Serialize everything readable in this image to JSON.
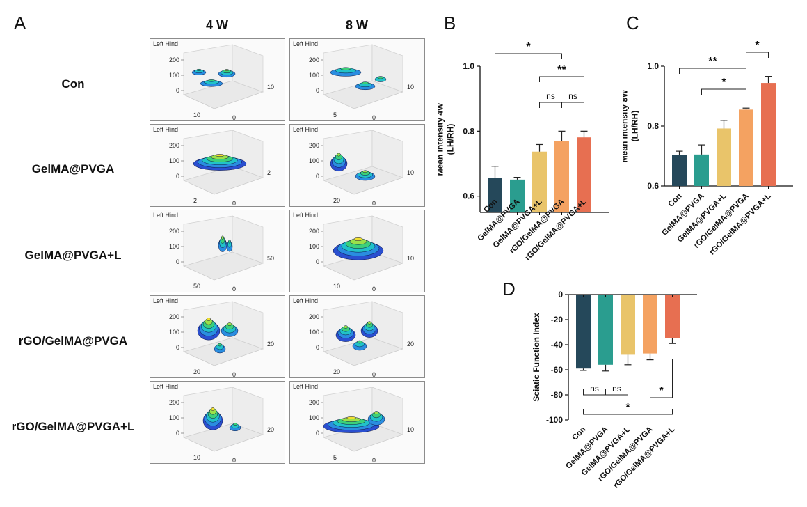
{
  "panel_labels": {
    "a": "A",
    "b": "B",
    "c": "C",
    "d": "D"
  },
  "panel_a": {
    "columns": [
      "4 W",
      "8 W"
    ],
    "groups": [
      "Con",
      "GelMA@PVGA",
      "GelMA@PVGA+L",
      "rGO/GelMA@PVGA",
      "rGO/GelMA@PVGA+L"
    ],
    "plot_title": "Left Hind",
    "plots": [
      [
        {
          "ticks": [
            "200",
            "100",
            "0"
          ],
          "axis_left": "10",
          "axis_right": "10",
          "axis_bottom": "0"
        },
        {
          "ticks": [
            "200",
            "100",
            "0"
          ],
          "axis_left": "5",
          "axis_right": "10",
          "axis_bottom": "0"
        }
      ],
      [
        {
          "ticks": [
            "200",
            "100",
            "0"
          ],
          "axis_left": "2",
          "axis_right": "2",
          "axis_bottom": "0"
        },
        {
          "ticks": [
            "200",
            "100",
            "0"
          ],
          "axis_left": "20",
          "axis_right": "10",
          "axis_bottom": "0"
        }
      ],
      [
        {
          "ticks": [
            "200",
            "100",
            "0"
          ],
          "axis_left": "50",
          "axis_right": "50",
          "axis_bottom": "0"
        },
        {
          "ticks": [
            "200",
            "100",
            "0"
          ],
          "axis_left": "10",
          "axis_right": "10",
          "axis_bottom": "0"
        }
      ],
      [
        {
          "ticks": [
            "200",
            "100",
            "0"
          ],
          "axis_left": "20",
          "axis_right": "20",
          "axis_bottom": "0"
        },
        {
          "ticks": [
            "200",
            "100",
            "0"
          ],
          "axis_left": "20",
          "axis_right": "20",
          "axis_bottom": "0"
        }
      ],
      [
        {
          "ticks": [
            "200",
            "100",
            "0"
          ],
          "axis_left": "10",
          "axis_right": "20",
          "axis_bottom": "0"
        },
        {
          "ticks": [
            "200",
            "100",
            "0"
          ],
          "axis_left": "5",
          "axis_right": "10",
          "axis_bottom": "0"
        }
      ]
    ]
  },
  "chart_data": [
    {
      "id": "B",
      "type": "bar",
      "categories": [
        "Con",
        "GelMA@PVGA",
        "GelMA@PVGA+L",
        "rGO/GelMA@PVGA",
        "rGO/GelMA@PVGA+L"
      ],
      "values": [
        0.656,
        0.651,
        0.737,
        0.77,
        0.781
      ],
      "errors": [
        0.036,
        0.007,
        0.022,
        0.03,
        0.019
      ],
      "colors": [
        "#25485a",
        "#2a9d8f",
        "#e9c46a",
        "#f4a261",
        "#e76f51"
      ],
      "ylabel": "Mean Intensity 4W\n(LH/RH)",
      "ylim": [
        0.55,
        1.0
      ],
      "yticks": [
        0.6,
        0.8,
        1.0
      ],
      "ytick_labels": [
        "0.6",
        "0.8",
        "1.0"
      ],
      "significance": [
        {
          "from": 0,
          "to": 3,
          "label": "*"
        },
        {
          "from": 2,
          "to": 4,
          "label": "**"
        },
        {
          "from": 2,
          "to": 3,
          "label": "ns"
        },
        {
          "from": 3,
          "to": 4,
          "label": "ns"
        }
      ]
    },
    {
      "id": "C",
      "type": "bar",
      "categories": [
        "Con",
        "GelMA@PVGA",
        "GelMA@PVGA+L",
        "rGO/GelMA@PVGA",
        "rGO/GelMA@PVGA+L"
      ],
      "values": [
        0.703,
        0.705,
        0.792,
        0.855,
        0.944
      ],
      "errors": [
        0.013,
        0.032,
        0.027,
        0.005,
        0.022
      ],
      "colors": [
        "#25485a",
        "#2a9d8f",
        "#e9c46a",
        "#f4a261",
        "#e76f51"
      ],
      "ylabel": "Mean Intensity 8W\n(LH/RH)",
      "ylim": [
        0.6,
        1.0
      ],
      "yticks": [
        0.6,
        0.8,
        1.0
      ],
      "ytick_labels": [
        "0.6",
        "0.8",
        "1.0"
      ],
      "significance": [
        {
          "from": 0,
          "to": 3,
          "label": "**"
        },
        {
          "from": 1,
          "to": 3,
          "label": "*"
        },
        {
          "from": 3,
          "to": 4,
          "label": "*"
        }
      ]
    },
    {
      "id": "D",
      "type": "bar",
      "categories": [
        "Con",
        "GelMA@PVGA",
        "GelMA@PVGA+L",
        "rGO/GelMA@PVGA",
        "rGO/GelMA@PVGA+L"
      ],
      "values": [
        -59,
        -56,
        -48,
        -47,
        -35
      ],
      "errors": [
        1.5,
        5,
        8,
        5,
        4
      ],
      "colors": [
        "#25485a",
        "#2a9d8f",
        "#e9c46a",
        "#f4a261",
        "#e76f51"
      ],
      "ylabel": "Sciatic Function Index",
      "ylim": [
        -100,
        0
      ],
      "yticks": [
        0,
        -20,
        -40,
        -60,
        -80,
        -100
      ],
      "ytick_labels": [
        "0",
        "-20",
        "-40",
        "-60",
        "-80",
        "-100"
      ],
      "significance": [
        {
          "from": 0,
          "to": 1,
          "label": "ns"
        },
        {
          "from": 1,
          "to": 2,
          "label": "ns"
        },
        {
          "from": 3,
          "to": 4,
          "label": "*"
        },
        {
          "from": 0,
          "to": 4,
          "label": "*"
        }
      ]
    }
  ]
}
